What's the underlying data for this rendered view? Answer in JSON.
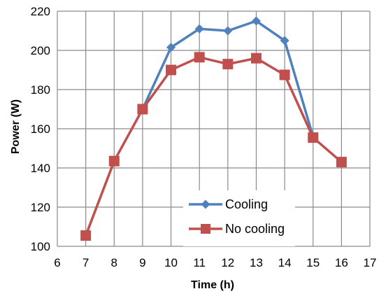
{
  "chart_data": {
    "type": "line",
    "title": "",
    "xlabel": "Time (h)",
    "ylabel": "Power (W)",
    "xlim": [
      6,
      17
    ],
    "ylim": [
      100,
      220
    ],
    "xticks": [
      6,
      7,
      8,
      9,
      10,
      11,
      12,
      13,
      14,
      15,
      16,
      17
    ],
    "yticks": [
      100,
      120,
      140,
      160,
      180,
      200,
      220
    ],
    "grid": true,
    "legend_position": "lower-center",
    "series": [
      {
        "name": "Cooling",
        "color": "#4f81bd",
        "marker": "diamond",
        "x": [
          9,
          10,
          11,
          12,
          13,
          14,
          15
        ],
        "y": [
          170,
          201.5,
          211,
          210,
          215,
          205,
          156
        ]
      },
      {
        "name": "No cooling",
        "color": "#c0504d",
        "marker": "square",
        "x": [
          7,
          8,
          9,
          10,
          11,
          12,
          13,
          14,
          15,
          16
        ],
        "y": [
          105.5,
          143.5,
          170,
          190,
          196.5,
          193,
          196,
          187.5,
          155.5,
          143
        ]
      }
    ]
  }
}
